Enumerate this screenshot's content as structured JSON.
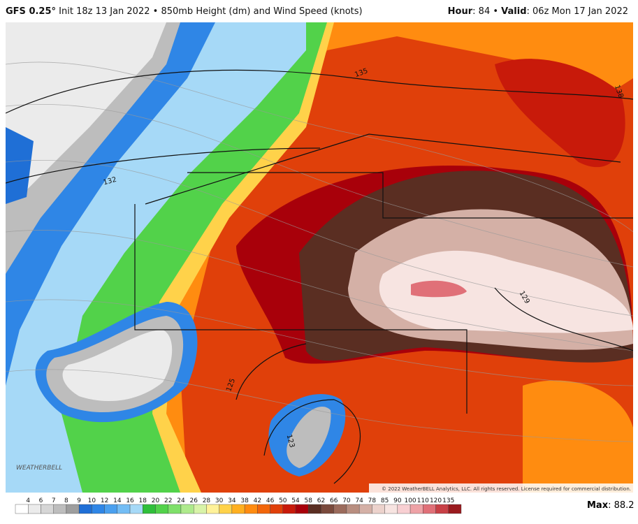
{
  "header": {
    "model": "GFS 0.25°",
    "init": "Init 18z 13 Jan 2022",
    "separator": "•",
    "product": "850mb Height (dm) and Wind Speed (knots)",
    "hour_label": "Hour",
    "hour_value": ": 84",
    "valid_label": "Valid",
    "valid_value": ": 06z Mon 17 Jan 2022"
  },
  "contours": [
    {
      "label": "135"
    },
    {
      "label": "132"
    },
    {
      "label": "138"
    },
    {
      "label": "129"
    },
    {
      "label": "125"
    },
    {
      "label": "123"
    }
  ],
  "logo": "WEATHERBELL",
  "copyright": "© 2022 WeatherBELL Analytics, LLC. All rights reserved. License required for commercial distribution.",
  "colorbar": {
    "labels": [
      4,
      6,
      7,
      8,
      9,
      10,
      12,
      14,
      16,
      18,
      20,
      22,
      24,
      26,
      28,
      30,
      34,
      38,
      42,
      46,
      50,
      54,
      58,
      62,
      66,
      70,
      74,
      78,
      85,
      90,
      100,
      110,
      120,
      135
    ],
    "colors": [
      "#ffffff",
      "#ebebeb",
      "#d6d6d6",
      "#bdbdbd",
      "#9e9e9e",
      "#1f6fd6",
      "#2f86e6",
      "#4aa0ef",
      "#73bdf5",
      "#a6d9f7",
      "#2fbf3a",
      "#52d24a",
      "#7fe06a",
      "#aeea8c",
      "#d8f3a8",
      "#fff29a",
      "#ffd24a",
      "#ffb020",
      "#ff8c10",
      "#f2660a",
      "#e0400a",
      "#c81a0a",
      "#a8000a",
      "#5a2e22",
      "#7a4a3c",
      "#9b6b5c",
      "#b88e80",
      "#d4b0a6",
      "#ecd2cc",
      "#f7e4e1",
      "#f8cfd2",
      "#eea2a6",
      "#e07078",
      "#c84046",
      "#9a1a1e"
    ]
  },
  "max_label": "Max",
  "max_value": ": 88.2"
}
